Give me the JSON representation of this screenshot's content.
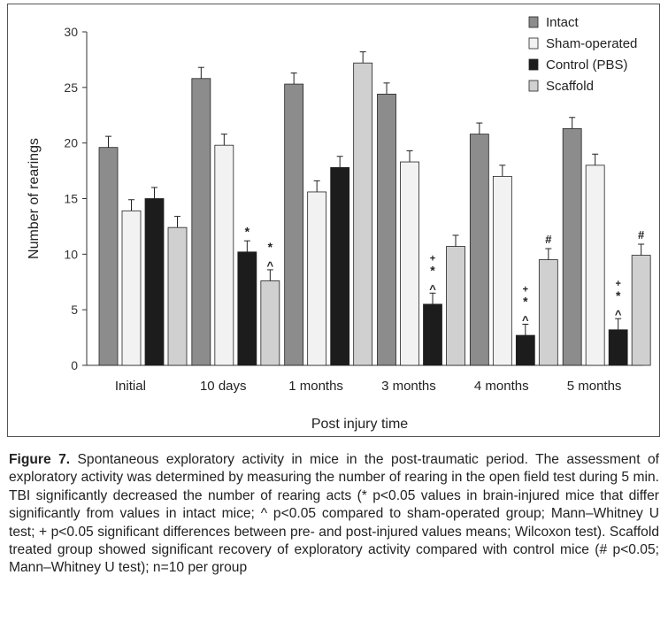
{
  "chart_data": {
    "type": "bar",
    "xlabel": "Post injury time",
    "ylabel": "Number of rearings",
    "ylim": [
      0,
      30
    ],
    "yticks": [
      0,
      5,
      10,
      15,
      20,
      25,
      30
    ],
    "categories": [
      "Initial",
      "10 days",
      "1 months",
      "3 months",
      "4 months",
      "5 months"
    ],
    "legend_position": "top-right",
    "series": [
      {
        "name": "Intact",
        "color": "#8c8c8c",
        "values": [
          19.6,
          25.8,
          25.3,
          24.4,
          20.8,
          21.3
        ],
        "errors": [
          1.0,
          1.0,
          1.0,
          1.0,
          1.0,
          1.0
        ],
        "marks": [
          [],
          [],
          [],
          [],
          [],
          []
        ]
      },
      {
        "name": "Sham-operated",
        "color": "#f2f2f2",
        "values": [
          13.9,
          19.8,
          15.6,
          18.3,
          17.0,
          18.0
        ],
        "errors": [
          1.0,
          1.0,
          1.0,
          1.0,
          1.0,
          1.0
        ],
        "marks": [
          [],
          [],
          [],
          [],
          [],
          []
        ]
      },
      {
        "name": "Control (PBS)",
        "color": "#1c1c1c",
        "values": [
          15.0,
          10.2,
          17.8,
          5.5,
          2.7,
          3.2
        ],
        "errors": [
          1.0,
          1.0,
          1.0,
          1.0,
          1.0,
          1.0
        ],
        "marks": [
          [],
          [
            "*"
          ],
          [],
          [
            "+",
            "*",
            "^"
          ],
          [
            "+",
            "*",
            "^"
          ],
          [
            "+",
            "*",
            "^"
          ]
        ]
      },
      {
        "name": "Scaffold",
        "color": "#d0d0d0",
        "values": [
          12.4,
          7.6,
          27.2,
          10.7,
          9.5,
          9.9
        ],
        "errors": [
          1.0,
          1.0,
          1.0,
          1.0,
          1.0,
          1.0
        ],
        "marks": [
          [],
          [
            "*",
            "^"
          ],
          [],
          [],
          [
            "#"
          ],
          [
            "#"
          ]
        ]
      }
    ]
  },
  "caption": {
    "label": "Figure 7.",
    "text": " Spontaneous exploratory activity in mice in the post-traumatic period. The assessment of exploratory activity was determined by measuring the number of rearing in the open field test during 5 min. TBI significantly decreased the number of rearing acts (* p<0.05 values in brain-injured mice that differ significantly from values in intact mice; ^ p<0.05 compared to sham-operated group; Mann–Whitney U test; + p<0.05 significant differences between pre- and post-injured values means; Wilcoxon test). Scaffold treated group showed significant recovery of exploratory activity compared with control mice (# p<0.05; Mann–Whitney U test); n=10 per group"
  }
}
